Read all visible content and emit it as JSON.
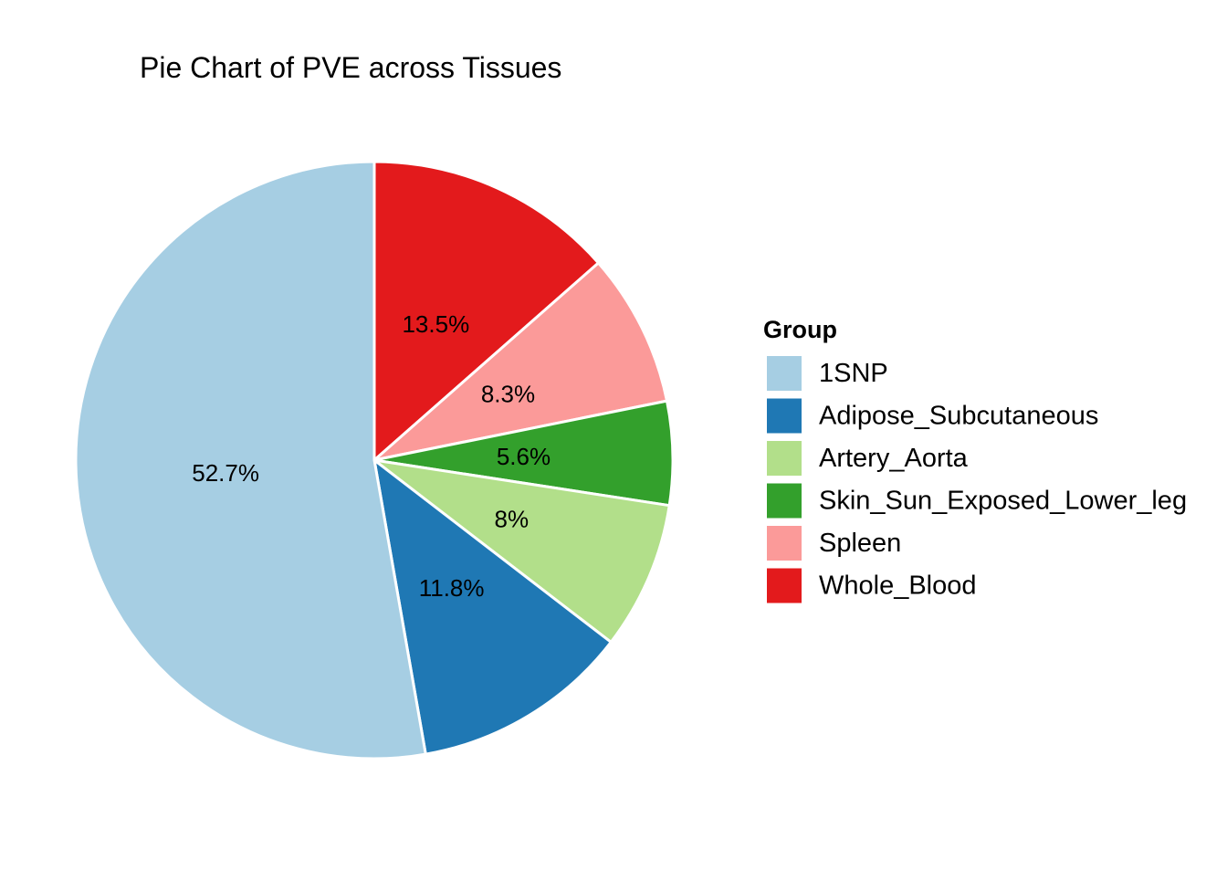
{
  "chart_data": {
    "type": "pie",
    "title": "Pie Chart of PVE across Tissues",
    "legend": {
      "title": "Group",
      "placement": "right"
    },
    "slices": [
      {
        "name": "Whole_Blood",
        "value": 13.5,
        "label": "13.5%",
        "color": "#E31A1C"
      },
      {
        "name": "Spleen",
        "value": 8.3,
        "label": "8.3%",
        "color": "#FB9A99"
      },
      {
        "name": "Skin_Sun_Exposed_Lower_leg",
        "value": 5.6,
        "label": "5.6%",
        "color": "#33A02C"
      },
      {
        "name": "Artery_Aorta",
        "value": 8.0,
        "label": "8%",
        "color": "#B2DF8A"
      },
      {
        "name": "Adipose_Subcutaneous",
        "value": 11.8,
        "label": "11.8%",
        "color": "#1F78B4"
      },
      {
        "name": "1SNP",
        "value": 52.7,
        "label": "52.7%",
        "color": "#A6CEE3"
      }
    ],
    "legend_order": [
      "1SNP",
      "Adipose_Subcutaneous",
      "Artery_Aorta",
      "Skin_Sun_Exposed_Lower_leg",
      "Spleen",
      "Whole_Blood"
    ],
    "direction": "clockwise",
    "start_angle": "12 o'clock"
  }
}
